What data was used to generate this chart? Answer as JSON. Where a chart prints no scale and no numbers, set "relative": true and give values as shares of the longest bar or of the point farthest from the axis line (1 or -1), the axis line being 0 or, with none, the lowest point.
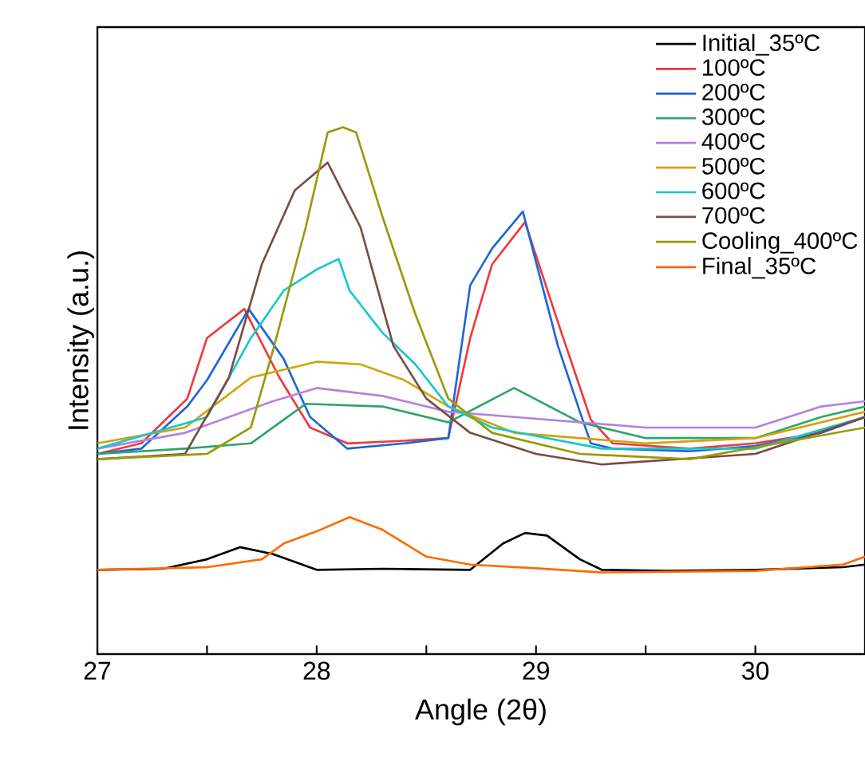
{
  "chart_data": {
    "type": "line",
    "relative": true,
    "xlabel": "Angle (2θ)",
    "ylabel": "Intensity (a.u.)",
    "xlim": [
      27,
      30.5
    ],
    "xticks": [
      27,
      {
        "value": 27.5,
        "label": null
      },
      28,
      {
        "value": 28.5,
        "label": null
      },
      29,
      {
        "value": 29.5,
        "label": null
      },
      30
    ],
    "legend": "top right",
    "line_style": "solid",
    "marker": "none",
    "series": [
      {
        "name": "Initial_35ºC",
        "color": "#000000",
        "x": [
          27,
          27.3,
          27.5,
          27.65,
          27.8,
          28.0,
          28.3,
          28.7,
          28.85,
          28.95,
          29.05,
          29.2,
          29.3,
          29.6,
          30.0,
          30.4,
          30.5
        ],
        "values": [
          0.16,
          0.162,
          0.18,
          0.203,
          0.19,
          0.16,
          0.162,
          0.16,
          0.21,
          0.23,
          0.225,
          0.18,
          0.16,
          0.158,
          0.16,
          0.165,
          0.17
        ]
      },
      {
        "name": "100ºC",
        "color": "#f0393c",
        "x": [
          27,
          27.2,
          27.41,
          27.5,
          27.67,
          27.83,
          27.97,
          28.14,
          28.4,
          28.6,
          28.7,
          28.8,
          28.95,
          29.1,
          29.25,
          29.35,
          29.7,
          30.0,
          30.3,
          30.5
        ],
        "values": [
          0.38,
          0.4,
          0.485,
          0.6,
          0.655,
          0.525,
          0.43,
          0.4,
          0.405,
          0.41,
          0.6,
          0.74,
          0.82,
          0.63,
          0.445,
          0.4,
          0.39,
          0.4,
          0.42,
          0.45
        ]
      },
      {
        "name": "200ºC",
        "color": "#1f66d6",
        "x": [
          27,
          27.2,
          27.41,
          27.5,
          27.69,
          27.85,
          27.97,
          28.14,
          28.4,
          28.6,
          28.7,
          28.8,
          28.94,
          29.1,
          29.2,
          29.25,
          29.35,
          29.7,
          30.0,
          30.3,
          30.5
        ],
        "values": [
          0.38,
          0.39,
          0.47,
          0.52,
          0.655,
          0.56,
          0.45,
          0.39,
          0.4,
          0.41,
          0.7,
          0.77,
          0.84,
          0.585,
          0.46,
          0.4,
          0.39,
          0.385,
          0.395,
          0.42,
          0.45
        ]
      },
      {
        "name": "300ºC",
        "color": "#2ea56a",
        "x": [
          27,
          27.4,
          27.7,
          27.95,
          28.3,
          28.6,
          28.9,
          29.2,
          29.5,
          30.0,
          30.3,
          30.5
        ],
        "values": [
          0.38,
          0.39,
          0.4,
          0.475,
          0.47,
          0.44,
          0.505,
          0.44,
          0.41,
          0.41,
          0.45,
          0.47
        ]
      },
      {
        "name": "400ºC",
        "color": "#b580e0",
        "x": [
          27,
          27.4,
          27.8,
          28.0,
          28.3,
          28.6,
          28.9,
          29.5,
          30.0,
          30.3,
          30.5
        ],
        "values": [
          0.39,
          0.42,
          0.48,
          0.505,
          0.49,
          0.46,
          0.45,
          0.43,
          0.43,
          0.47,
          0.48
        ]
      },
      {
        "name": "500ºC",
        "color": "#d4a20a",
        "x": [
          27,
          27.4,
          27.7,
          28.0,
          28.2,
          28.4,
          28.6,
          28.9,
          29.5,
          30.0,
          30.5
        ],
        "values": [
          0.4,
          0.43,
          0.525,
          0.555,
          0.55,
          0.52,
          0.47,
          0.42,
          0.4,
          0.41,
          0.46
        ]
      },
      {
        "name": "600ºC",
        "color": "#17c8c8",
        "x": [
          27,
          27.5,
          27.7,
          27.85,
          28.0,
          28.1,
          28.15,
          28.3,
          28.45,
          28.6,
          28.8,
          29.3,
          30.0,
          30.5
        ],
        "values": [
          0.39,
          0.45,
          0.6,
          0.69,
          0.73,
          0.75,
          0.69,
          0.61,
          0.55,
          0.47,
          0.43,
          0.39,
          0.39,
          0.45
        ]
      },
      {
        "name": "700ºC",
        "color": "#7a4c44",
        "x": [
          27,
          27.4,
          27.6,
          27.75,
          27.9,
          28.05,
          28.2,
          28.35,
          28.5,
          28.7,
          29.0,
          29.3,
          30.0,
          30.5
        ],
        "values": [
          0.37,
          0.38,
          0.525,
          0.74,
          0.88,
          0.933,
          0.81,
          0.585,
          0.485,
          0.42,
          0.38,
          0.36,
          0.38,
          0.45
        ]
      },
      {
        "name": "Cooling_400ºC",
        "color": "#9a9a0a",
        "x": [
          27,
          27.5,
          27.7,
          27.8,
          27.95,
          28.05,
          28.12,
          28.18,
          28.3,
          28.45,
          28.6,
          28.8,
          29.2,
          29.7,
          30.5
        ],
        "values": [
          0.37,
          0.38,
          0.43,
          0.575,
          0.81,
          0.99,
          1.0,
          0.99,
          0.83,
          0.645,
          0.485,
          0.42,
          0.38,
          0.37,
          0.43
        ]
      },
      {
        "name": "Final_35ºC",
        "color": "#ff6a00",
        "x": [
          27,
          27.5,
          27.75,
          27.85,
          28.0,
          28.15,
          28.3,
          28.5,
          28.7,
          29.0,
          29.3,
          30.0,
          30.4,
          30.5
        ],
        "values": [
          0.16,
          0.165,
          0.18,
          0.21,
          0.233,
          0.26,
          0.236,
          0.185,
          0.17,
          0.163,
          0.155,
          0.158,
          0.17,
          0.185
        ]
      }
    ]
  }
}
